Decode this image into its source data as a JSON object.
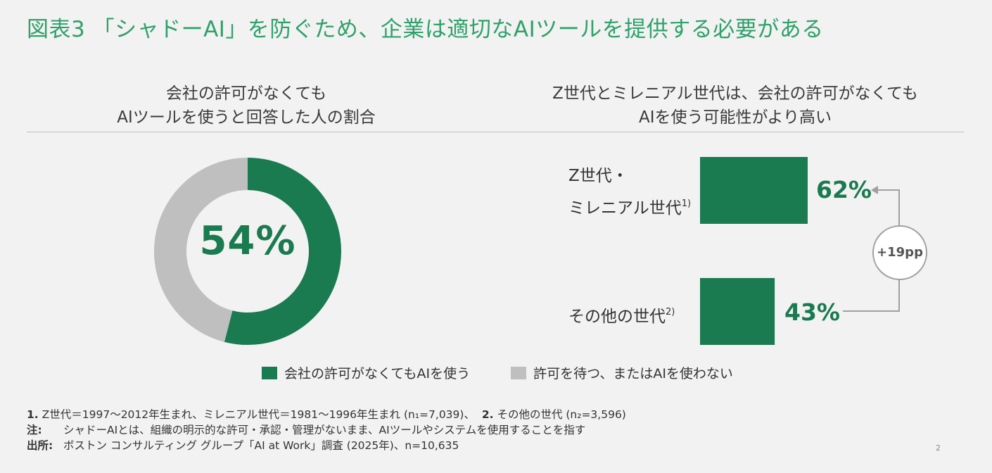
{
  "title": "図表3 「シャドーAI」を防ぐため、企業は適切なAIツールを提供する必要がある",
  "left_heading": [
    "会社の許可がなくても",
    "AIツールを使うと回答した人の割合"
  ],
  "right_heading": [
    "Z世代とミレニアル世代は、会社の許可がなくても",
    "AIを使う可能性がより高い"
  ],
  "colors": {
    "green": "#1a7a50",
    "grey": "#bfbfbf",
    "title": "#2fa16a"
  },
  "chart_data": [
    {
      "type": "pie",
      "labels": [
        "会社の許可がなくてもAIを使う",
        "許可を待つ、またはAIを使わない"
      ],
      "values": [
        54,
        46
      ],
      "center_label": "54%",
      "legend": "bottom"
    },
    {
      "type": "bar",
      "orientation": "horizontal",
      "categories": [
        {
          "line1": "Z世代・",
          "line2": "ミレニアル世代",
          "sup": "1)"
        },
        {
          "line1": "その他の世代",
          "sup": "2)"
        }
      ],
      "values": [
        62,
        43
      ],
      "value_labels": [
        "62%",
        "43%"
      ],
      "difference_label": "+19pp"
    }
  ],
  "notes": {
    "n1_num": "1.",
    "n1_text": "Z世代＝1997〜2012年生まれ、ミレニアル世代＝1981〜1996年生まれ (n₁=7,039)、",
    "n2_num": "2.",
    "n2_text": "その他の世代 (n₂=3,596)",
    "note_key": "注:",
    "note_text": "シャドーAIとは、組織の明示的な許可・承認・管理がないまま、AIツールやシステムを使用することを指す",
    "source_key": "出所:",
    "source_text": "ボストン コンサルティング グループ「AI at Work」調査 (2025年)、n=10,635"
  },
  "page_number": "2"
}
